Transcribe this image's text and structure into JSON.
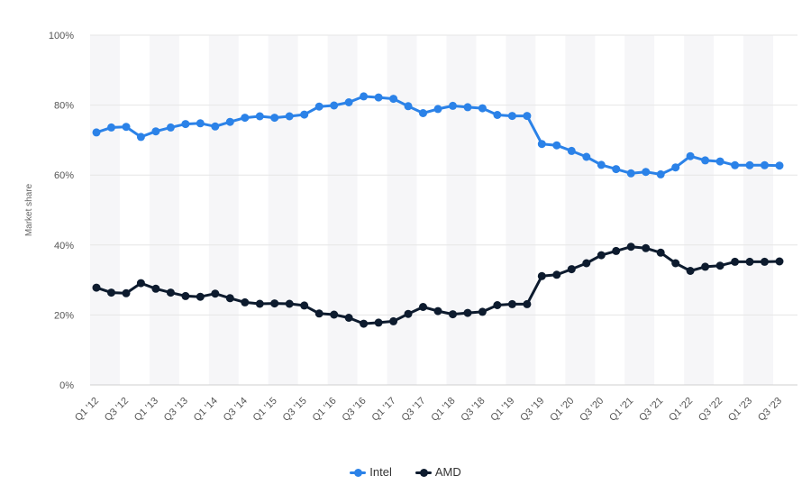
{
  "chart_data": {
    "type": "line",
    "title": "",
    "xlabel": "",
    "ylabel": "Market share",
    "ylim": [
      0,
      100
    ],
    "y_ticks": [
      "0%",
      "20%",
      "40%",
      "60%",
      "80%",
      "100%"
    ],
    "y_tick_values": [
      0,
      20,
      40,
      60,
      80,
      100
    ],
    "x_tick_labels": [
      "Q1 '12",
      "Q3 '12",
      "Q1 '13",
      "Q3 '13",
      "Q1 '14",
      "Q3 '14",
      "Q1 '15",
      "Q3 '15",
      "Q1 '16",
      "Q3 '16",
      "Q1 '17",
      "Q3 '17",
      "Q1 '18",
      "Q3 '18",
      "Q1 '19",
      "Q3 '19",
      "Q1 '20",
      "Q3 '20",
      "Q1 '21",
      "Q3 '21",
      "Q1 '22",
      "Q3 '22",
      "Q1 '23",
      "Q3 '23"
    ],
    "categories": [
      "Q1 '12",
      "Q2 '12",
      "Q3 '12",
      "Q4 '12",
      "Q1 '13",
      "Q2 '13",
      "Q3 '13",
      "Q4 '13",
      "Q1 '14",
      "Q2 '14",
      "Q3 '14",
      "Q4 '14",
      "Q1 '15",
      "Q2 '15",
      "Q3 '15",
      "Q4 '15",
      "Q1 '16",
      "Q2 '16",
      "Q3 '16",
      "Q4 '16",
      "Q1 '17",
      "Q2 '17",
      "Q3 '17",
      "Q4 '17",
      "Q1 '18",
      "Q2 '18",
      "Q3 '18",
      "Q4 '18",
      "Q1 '19",
      "Q2 '19",
      "Q3 '19",
      "Q4 '19",
      "Q1 '20",
      "Q2 '20",
      "Q3 '20",
      "Q4 '20",
      "Q1 '21",
      "Q2 '21",
      "Q3 '21",
      "Q4 '21",
      "Q1 '22",
      "Q2 '22",
      "Q3 '22",
      "Q4 '22",
      "Q1 '23",
      "Q2 '23",
      "Q3 '23"
    ],
    "grid": true,
    "legend_position": "bottom-center",
    "series": [
      {
        "name": "Intel",
        "color": "#2b82e8",
        "values": [
          72.2,
          73.6,
          73.8,
          70.9,
          72.5,
          73.6,
          74.6,
          74.8,
          73.9,
          75.2,
          76.4,
          76.8,
          76.4,
          76.8,
          77.3,
          79.6,
          79.9,
          80.8,
          82.5,
          82.2,
          81.8,
          79.7,
          77.7,
          78.9,
          79.8,
          79.4,
          79.1,
          77.2,
          76.9,
          76.9,
          68.9,
          68.5,
          66.9,
          65.2,
          62.9,
          61.7,
          60.5,
          60.9,
          60.2,
          62.2,
          65.4,
          64.2,
          63.9,
          62.8,
          62.8,
          62.8,
          62.7
        ]
      },
      {
        "name": "AMD",
        "color": "#0d1b2e",
        "values": [
          27.8,
          26.4,
          26.2,
          29.1,
          27.5,
          26.4,
          25.4,
          25.2,
          26.1,
          24.8,
          23.6,
          23.2,
          23.3,
          23.2,
          22.7,
          20.4,
          20.1,
          19.2,
          17.5,
          17.8,
          18.2,
          20.3,
          22.3,
          21.1,
          20.2,
          20.6,
          20.9,
          22.8,
          23.1,
          23.1,
          31.1,
          31.5,
          33.1,
          34.8,
          37.1,
          38.3,
          39.5,
          39.1,
          37.8,
          34.8,
          32.6,
          33.8,
          34.1,
          35.2,
          35.2,
          35.2,
          35.3
        ]
      }
    ]
  }
}
